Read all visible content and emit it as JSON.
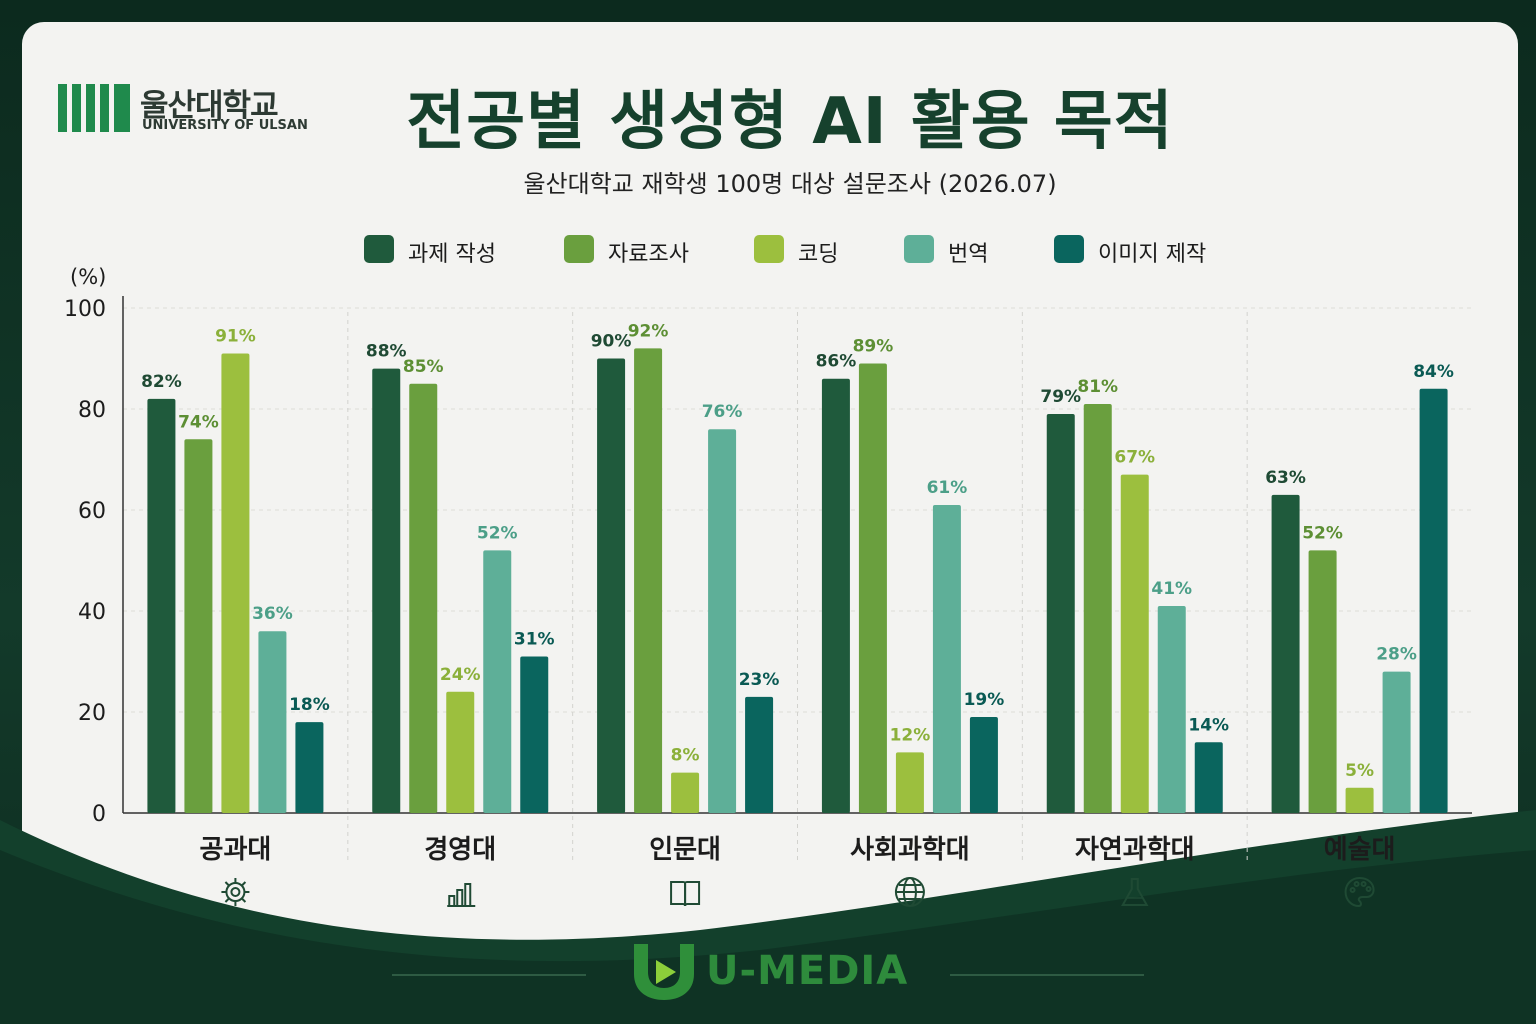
{
  "brand": {
    "university_kr": "울산대학교",
    "university_en": "UNIVERSITY OF ULSAN",
    "footer": "U-MEDIA"
  },
  "chart_data": {
    "type": "bar",
    "title": "전공별 생성형 AI 활용 목적",
    "subtitle": "울산대학교 재학생 100명 대상 설문조사 (2026.07)",
    "ylabel": "(%)",
    "ylim": [
      0,
      100
    ],
    "yticks": [
      0,
      20,
      40,
      60,
      80,
      100
    ],
    "grid": true,
    "legend_position": "top",
    "categories": [
      "공과대",
      "경영대",
      "인문대",
      "사회과학대",
      "자연과학대",
      "예술대"
    ],
    "category_icons": [
      "gear-icon",
      "bar-chart-icon",
      "book-icon",
      "globe-icon",
      "flask-icon",
      "palette-icon"
    ],
    "series": [
      {
        "name": "과제 작성",
        "color": "#1f5a3c",
        "label_color": "#1f4a34",
        "values": [
          82,
          88,
          90,
          86,
          79,
          63
        ]
      },
      {
        "name": "자료조사",
        "color": "#6a9f3e",
        "label_color": "#5d8f34",
        "values": [
          74,
          85,
          92,
          89,
          81,
          52
        ]
      },
      {
        "name": "코딩",
        "color": "#9cbf3e",
        "label_color": "#8bb03a",
        "values": [
          91,
          24,
          8,
          12,
          67,
          5
        ]
      },
      {
        "name": "번역",
        "color": "#5eaf98",
        "label_color": "#4c9f88",
        "values": [
          36,
          52,
          76,
          61,
          41,
          28
        ]
      },
      {
        "name": "이미지 제작",
        "color": "#0a655e",
        "label_color": "#0a5a54",
        "values": [
          18,
          31,
          23,
          19,
          14,
          84
        ]
      }
    ],
    "value_suffix": "%"
  }
}
